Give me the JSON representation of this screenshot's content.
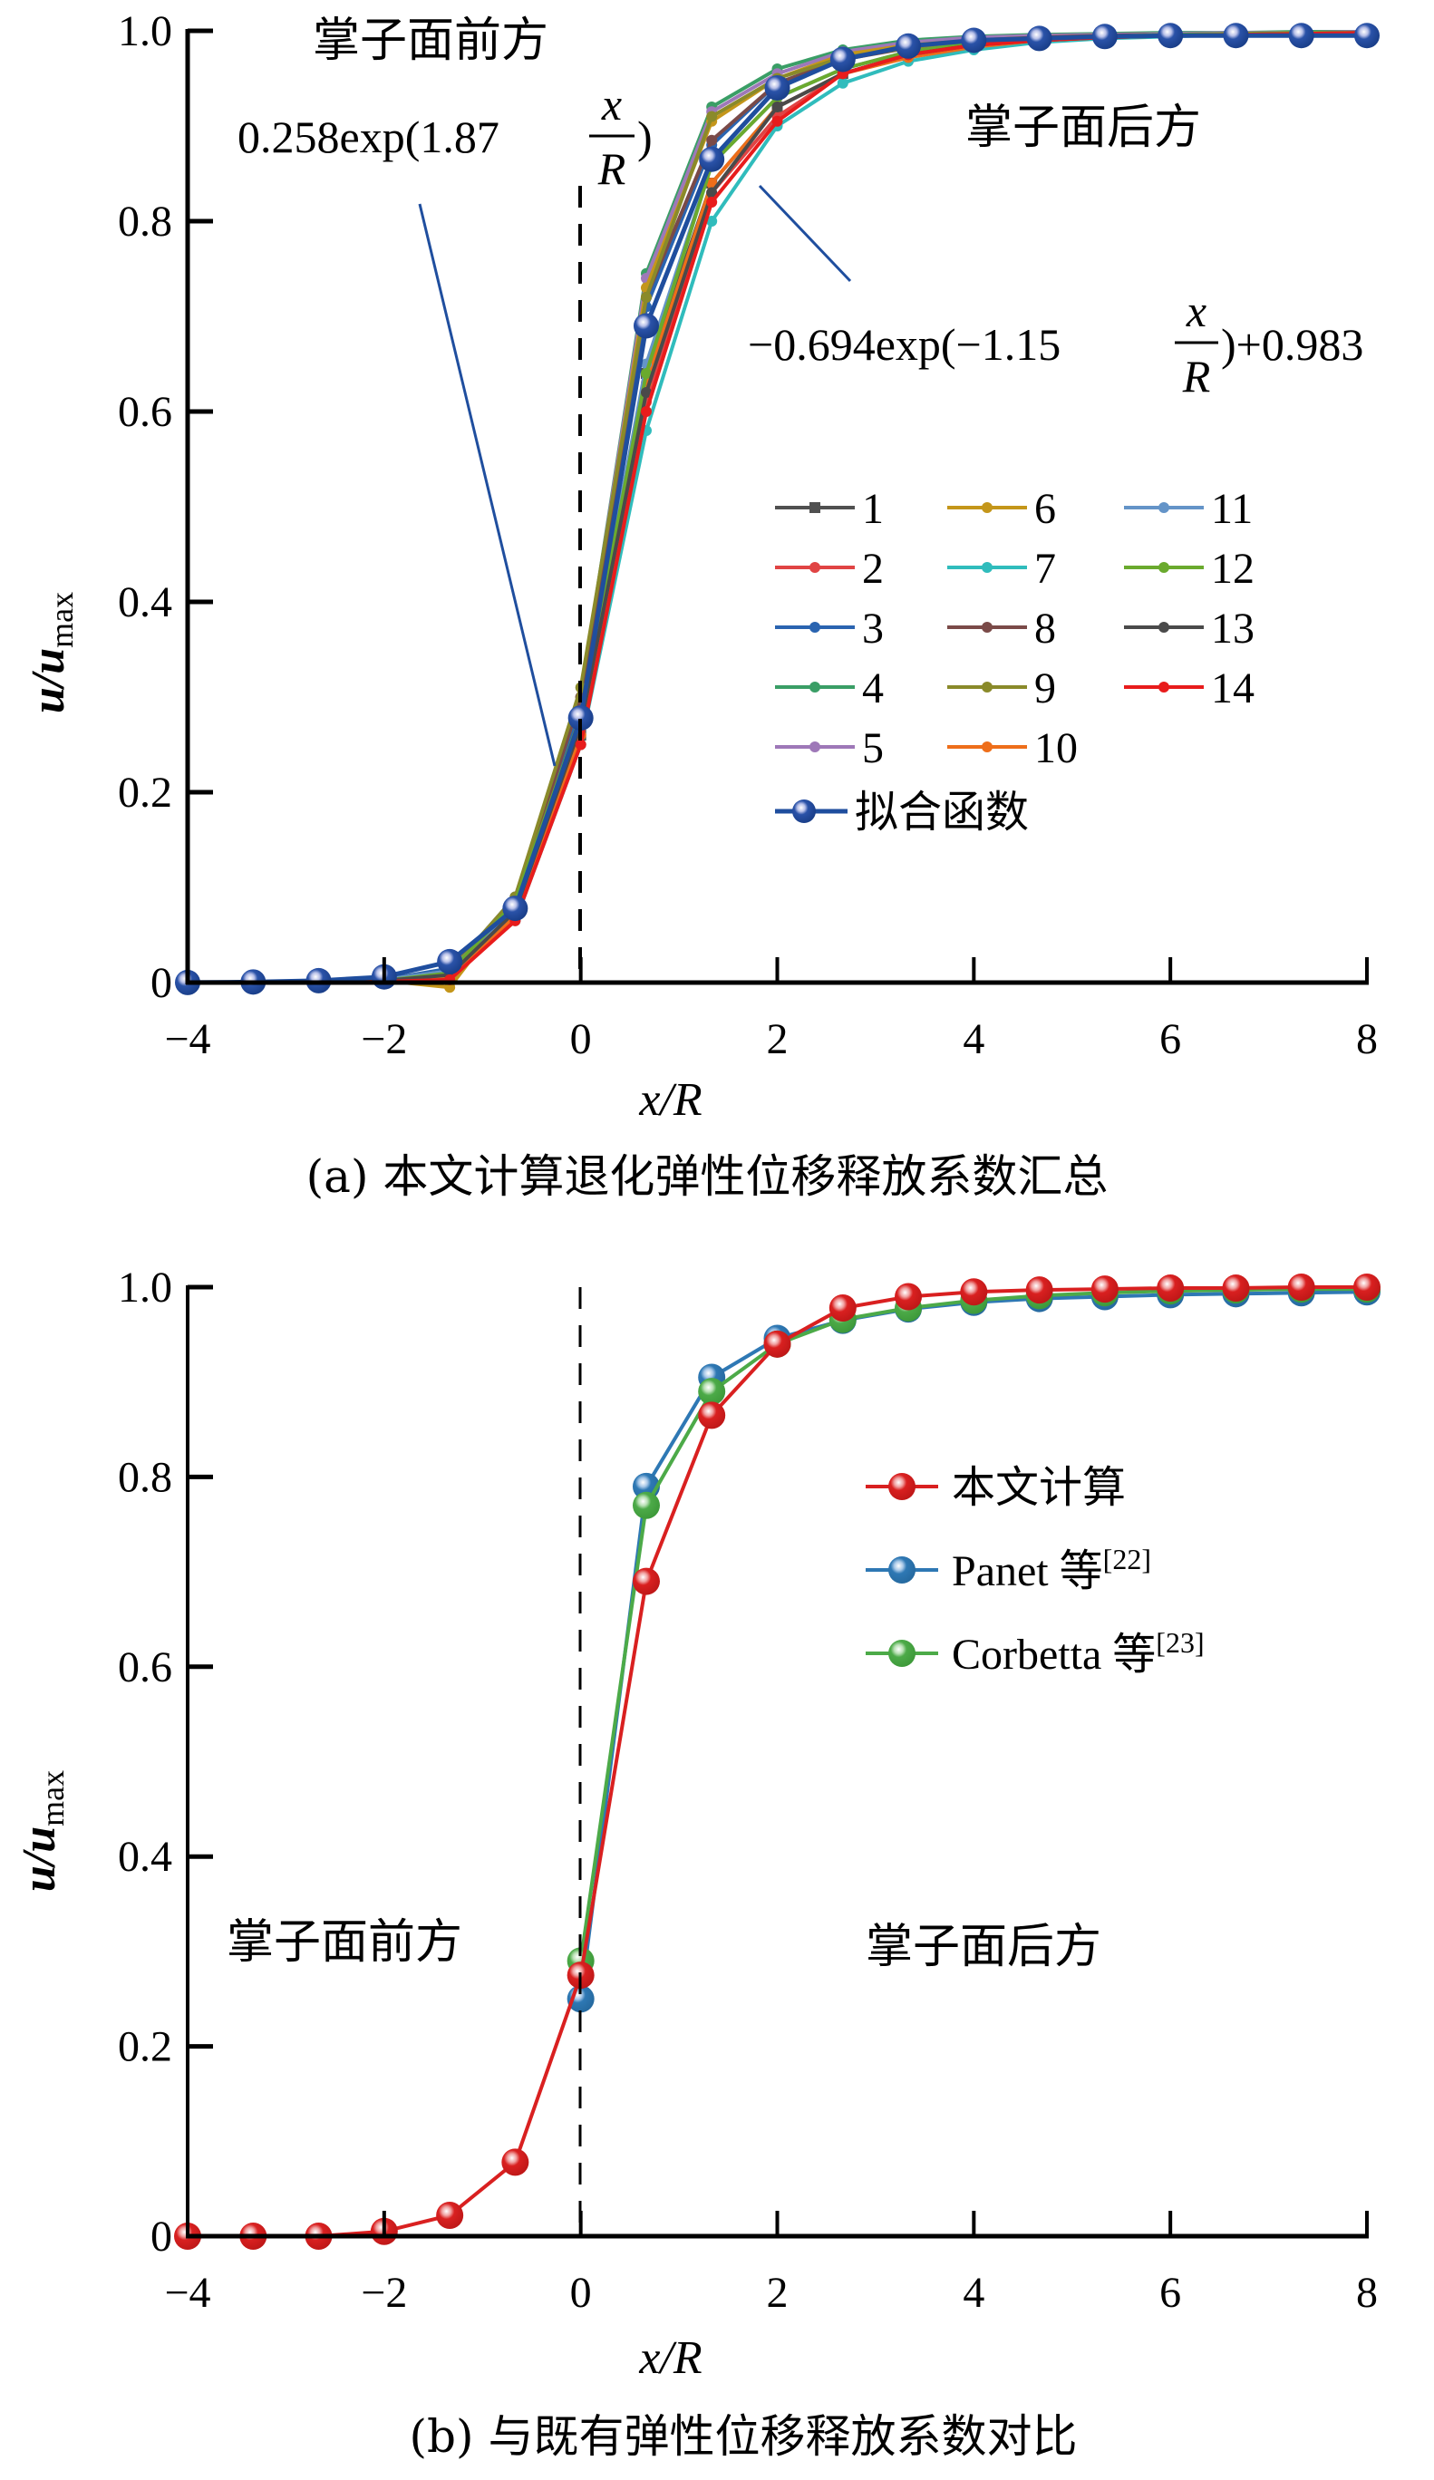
{
  "chart_data": [
    {
      "type": "line",
      "caption": "(a) 本文计算退化弹性位移释放系数汇总",
      "xlabel": "x/R",
      "ylabel": "u/u",
      "ylabel_sub": "max",
      "xlim": [
        -4,
        8
      ],
      "ylim": [
        0,
        1.0
      ],
      "xticks": [
        "−4",
        "−2",
        "0",
        "2",
        "4",
        "6",
        "8"
      ],
      "xtick_values": [
        -4,
        -2,
        0,
        2,
        4,
        6,
        8
      ],
      "yticks": [
        "0",
        "0.2",
        "0.4",
        "0.6",
        "0.8",
        "1.0"
      ],
      "ytick_values": [
        0,
        0.2,
        0.4,
        0.6,
        0.8,
        1.0
      ],
      "grid": false,
      "legend_position": "center-right",
      "annotations": {
        "front_label": "掌子面前方",
        "back_label": "掌子面后方",
        "fit_front": {
          "prefix": "0.258exp(1.87",
          "num": "x",
          "den": "R",
          "suffix": ")"
        },
        "fit_back": {
          "prefix": "−0.694exp(−1.15",
          "num": "x",
          "den": "R",
          "suffix": ")+0.983"
        }
      },
      "x": [
        -4,
        -3.333,
        -2.667,
        -2,
        -1.333,
        -0.667,
        0,
        0.667,
        1.333,
        2,
        2.667,
        3.333,
        4,
        4.667,
        5.333,
        6,
        6.667,
        7.333,
        8
      ],
      "series": [
        {
          "name": "1",
          "color": "#505050",
          "marker": "square",
          "values": [
            0,
            0,
            0,
            0.002,
            0.01,
            0.07,
            0.26,
            0.64,
            0.84,
            0.92,
            0.955,
            0.975,
            0.985,
            0.99,
            0.993,
            0.995,
            0.996,
            0.997,
            0.998
          ]
        },
        {
          "name": "2",
          "color": "#e04444",
          "marker": "circle",
          "values": [
            0,
            0,
            0,
            0.001,
            0.005,
            0.065,
            0.25,
            0.61,
            0.83,
            0.91,
            0.955,
            0.975,
            0.985,
            0.99,
            0.994,
            0.996,
            0.997,
            0.998,
            0.998
          ]
        },
        {
          "name": "3",
          "color": "#2a64b0",
          "marker": "circle",
          "values": [
            0,
            0,
            0,
            0.003,
            0.015,
            0.08,
            0.29,
            0.71,
            0.88,
            0.945,
            0.97,
            0.985,
            0.99,
            0.994,
            0.996,
            0.997,
            0.998,
            0.998,
            0.999
          ]
        },
        {
          "name": "4",
          "color": "#3a9e66",
          "marker": "circle",
          "values": [
            0,
            0,
            0,
            0.003,
            0.012,
            0.09,
            0.3,
            0.745,
            0.92,
            0.96,
            0.98,
            0.99,
            0.994,
            0.996,
            0.997,
            0.998,
            0.998,
            0.999,
            0.999
          ]
        },
        {
          "name": "5",
          "color": "#9e78b8",
          "marker": "circle",
          "values": [
            0,
            0,
            0,
            0.003,
            0.012,
            0.09,
            0.3,
            0.74,
            0.915,
            0.955,
            0.978,
            0.988,
            0.993,
            0.995,
            0.996,
            0.997,
            0.998,
            0.998,
            0.999
          ]
        },
        {
          "name": "6",
          "color": "#c4961a",
          "marker": "circle",
          "values": [
            0,
            0,
            0,
            0.002,
            -0.005,
            0.085,
            0.3,
            0.73,
            0.905,
            0.95,
            0.975,
            0.985,
            0.99,
            0.993,
            0.995,
            0.996,
            0.997,
            0.998,
            0.998
          ]
        },
        {
          "name": "7",
          "color": "#30bcbc",
          "marker": "circle",
          "values": [
            0,
            0,
            0,
            0.001,
            0.005,
            0.065,
            0.25,
            0.58,
            0.8,
            0.9,
            0.945,
            0.968,
            0.98,
            0.988,
            0.992,
            0.994,
            0.996,
            0.997,
            0.998
          ]
        },
        {
          "name": "8",
          "color": "#7a4a48",
          "marker": "circle",
          "values": [
            0,
            0,
            0,
            0.002,
            0.01,
            0.085,
            0.3,
            0.72,
            0.885,
            0.945,
            0.97,
            0.982,
            0.99,
            0.993,
            0.995,
            0.996,
            0.997,
            0.998,
            0.998
          ]
        },
        {
          "name": "9",
          "color": "#8a8a2a",
          "marker": "circle",
          "values": [
            0,
            0,
            0,
            0.003,
            0.012,
            0.09,
            0.31,
            0.72,
            0.91,
            0.95,
            0.972,
            0.982,
            0.988,
            0.99,
            0.993,
            0.995,
            0.996,
            0.997,
            0.998
          ]
        },
        {
          "name": "10",
          "color": "#ee6e1a",
          "marker": "circle",
          "values": [
            0,
            0,
            0,
            0.001,
            0.006,
            0.07,
            0.26,
            0.63,
            0.84,
            0.92,
            0.955,
            0.972,
            0.983,
            0.99,
            0.993,
            0.995,
            0.996,
            0.997,
            0.998
          ]
        },
        {
          "name": "11",
          "color": "#6494c8",
          "marker": "circle",
          "values": [
            0,
            0,
            0,
            0.003,
            0.012,
            0.08,
            0.28,
            0.65,
            0.86,
            0.93,
            0.96,
            0.978,
            0.987,
            0.992,
            0.994,
            0.996,
            0.997,
            0.998,
            0.998
          ]
        },
        {
          "name": "12",
          "color": "#6aaa2e",
          "marker": "circle",
          "values": [
            0,
            0,
            0,
            0.002,
            0.01,
            0.085,
            0.28,
            0.64,
            0.86,
            0.93,
            0.96,
            0.978,
            0.987,
            0.991,
            0.994,
            0.996,
            0.997,
            0.998,
            0.998
          ]
        },
        {
          "name": "13",
          "color": "#4a4a4a",
          "marker": "circle",
          "values": [
            0,
            0,
            0,
            0.002,
            0.008,
            0.075,
            0.27,
            0.62,
            0.83,
            0.92,
            0.955,
            0.975,
            0.985,
            0.99,
            0.993,
            0.995,
            0.996,
            0.997,
            0.998
          ]
        },
        {
          "name": "14",
          "color": "#e81c1c",
          "marker": "circle",
          "values": [
            0,
            0,
            0,
            0.001,
            0.003,
            0.065,
            0.25,
            0.6,
            0.82,
            0.905,
            0.955,
            0.975,
            0.985,
            0.99,
            0.993,
            0.995,
            0.996,
            0.997,
            0.998
          ]
        },
        {
          "name": "拟合函数",
          "color": "#1f4e9e",
          "marker": "ball",
          "values": [
            0.0001,
            0.0006,
            0.002,
            0.006,
            0.022,
            0.078,
            0.278,
            0.69,
            0.865,
            0.94,
            0.97,
            0.984,
            0.99,
            0.992,
            0.994,
            0.995,
            0.995,
            0.995,
            0.995
          ]
        }
      ]
    },
    {
      "type": "line",
      "caption": "(b) 与既有弹性位移释放系数对比",
      "xlabel": "x/R",
      "ylabel": "u/u",
      "ylabel_sub": "max",
      "xlim": [
        -4,
        8
      ],
      "ylim": [
        0,
        1.0
      ],
      "xticks": [
        "−4",
        "−2",
        "0",
        "2",
        "4",
        "6",
        "8"
      ],
      "xtick_values": [
        -4,
        -2,
        0,
        2,
        4,
        6,
        8
      ],
      "yticks": [
        "0",
        "0.2",
        "0.4",
        "0.6",
        "0.8",
        "1.0"
      ],
      "ytick_values": [
        0,
        0.2,
        0.4,
        0.6,
        0.8,
        1.0
      ],
      "grid": false,
      "legend_position": "center-right",
      "annotations": {
        "front_label": "掌子面前方",
        "back_label": "掌子面后方"
      },
      "series": [
        {
          "name": "本文计算",
          "ref": "",
          "color": "#d92020",
          "x": [
            -4,
            -3.333,
            -2.667,
            -2,
            -1.333,
            -0.667,
            0,
            0.667,
            1.333,
            2,
            2.667,
            3.333,
            4,
            4.667,
            5.333,
            6,
            6.667,
            7.333,
            8
          ],
          "values": [
            0,
            0,
            0,
            0.005,
            0.022,
            0.078,
            0.275,
            0.69,
            0.865,
            0.94,
            0.978,
            0.99,
            0.995,
            0.997,
            0.998,
            0.999,
            0.999,
            1.0,
            1.0
          ]
        },
        {
          "name": "Panet 等",
          "ref": "[22]",
          "color": "#2e78b4",
          "x": [
            0,
            0.667,
            1.333,
            2,
            2.667,
            3.333,
            4,
            4.667,
            5.333,
            6,
            6.667,
            7.333,
            8
          ],
          "values": [
            0.25,
            0.79,
            0.905,
            0.946,
            0.965,
            0.977,
            0.984,
            0.988,
            0.99,
            0.992,
            0.993,
            0.994,
            0.995
          ]
        },
        {
          "name": "Corbetta 等",
          "ref": "[23]",
          "color": "#4caa48",
          "x": [
            0,
            0.667,
            1.333,
            2,
            2.667,
            3.333,
            4,
            4.667,
            5.333,
            6,
            6.667,
            7.333,
            8
          ],
          "values": [
            0.29,
            0.77,
            0.89,
            0.94,
            0.966,
            0.978,
            0.986,
            0.991,
            0.994,
            0.996,
            0.997,
            0.998,
            0.998
          ]
        }
      ]
    }
  ]
}
